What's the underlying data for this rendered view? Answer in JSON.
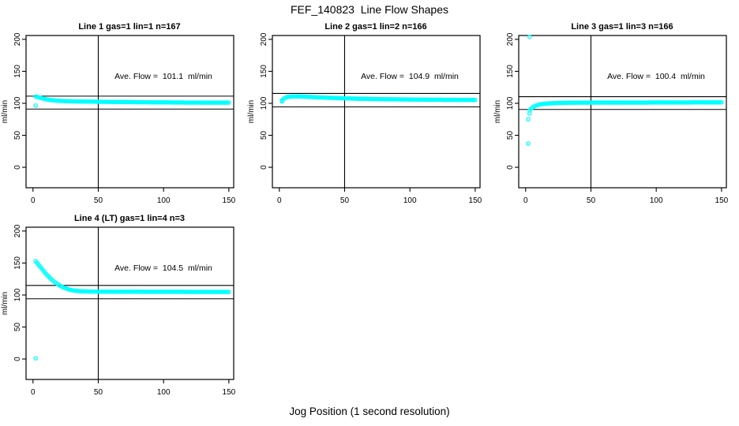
{
  "page": {
    "title": "FEF_140823  Line Flow Shapes",
    "x_axis_label": "Jog Position (1 second resolution)"
  },
  "style": {
    "point_color": "#00ffff",
    "axis_color": "#000000",
    "background": "#ffffff"
  },
  "axes": {
    "ylabel": "ml/min",
    "x_ticks": [
      0,
      50,
      100,
      150
    ],
    "y_ticks": [
      0,
      50,
      100,
      150,
      200
    ],
    "x_range": [
      -5.3,
      153.7
    ],
    "y_range": [
      -32,
      206
    ],
    "vline_x": 50
  },
  "chart_data": [
    {
      "type": "scatter",
      "title": "Line 1 gas=1 lin=1 n=167",
      "annotation": "Ave. Flow =  101.1  ml/min",
      "ave_flow_ml_min": 101.1,
      "n_points": 167,
      "hlines": [
        111.2,
        91.0
      ],
      "grid": {
        "row": 0,
        "col": 0
      },
      "points": [
        [
          2,
          110.5
        ],
        [
          3,
          110.2
        ],
        [
          4,
          109.6
        ],
        [
          5,
          109.0
        ],
        [
          6,
          108.4
        ],
        [
          7,
          107.8
        ],
        [
          8,
          107.2
        ],
        [
          10,
          106.3
        ],
        [
          12,
          105.6
        ],
        [
          14,
          105.0
        ],
        [
          16,
          104.6
        ],
        [
          18,
          104.2
        ],
        [
          20,
          103.9
        ],
        [
          23,
          103.6
        ],
        [
          26,
          103.3
        ],
        [
          30,
          103.1
        ],
        [
          35,
          102.9
        ],
        [
          40,
          102.7
        ],
        [
          45,
          102.6
        ],
        [
          50,
          102.4
        ],
        [
          55,
          102.3
        ],
        [
          60,
          102.2
        ],
        [
          65,
          102.1
        ],
        [
          70,
          102.0
        ],
        [
          80,
          101.8
        ],
        [
          90,
          101.6
        ],
        [
          100,
          101.5
        ],
        [
          110,
          101.3
        ],
        [
          120,
          101.2
        ],
        [
          130,
          101.1
        ],
        [
          140,
          101.0
        ],
        [
          150,
          101.0
        ]
      ],
      "outliers": [
        [
          2,
          96.5
        ]
      ]
    },
    {
      "type": "scatter",
      "title": "Line 2 gas=1 lin=2 n=166",
      "annotation": "Ave. Flow =  104.9  ml/min",
      "ave_flow_ml_min": 104.9,
      "n_points": 166,
      "hlines": [
        115.4,
        94.4
      ],
      "grid": {
        "row": 0,
        "col": 1
      },
      "points": [
        [
          2,
          104.5
        ],
        [
          3,
          106.5
        ],
        [
          4,
          108.0
        ],
        [
          5,
          109.0
        ],
        [
          6,
          109.8
        ],
        [
          8,
          110.4
        ],
        [
          10,
          110.7
        ],
        [
          12,
          110.8
        ],
        [
          14,
          110.8
        ],
        [
          16,
          110.7
        ],
        [
          18,
          110.5
        ],
        [
          20,
          110.3
        ],
        [
          23,
          110.0
        ],
        [
          26,
          109.7
        ],
        [
          30,
          109.3
        ],
        [
          35,
          108.9
        ],
        [
          40,
          108.5
        ],
        [
          45,
          108.1
        ],
        [
          50,
          107.8
        ],
        [
          55,
          107.5
        ],
        [
          60,
          107.2
        ],
        [
          65,
          107.0
        ],
        [
          70,
          106.8
        ],
        [
          80,
          106.5
        ],
        [
          90,
          106.2
        ],
        [
          100,
          106.0
        ],
        [
          110,
          105.8
        ],
        [
          120,
          105.6
        ],
        [
          130,
          105.5
        ],
        [
          140,
          105.4
        ],
        [
          150,
          105.3
        ]
      ],
      "outliers": [
        [
          2,
          103.0
        ]
      ]
    },
    {
      "type": "scatter",
      "title": "Line 3 gas=1 lin=3 n=166",
      "annotation": "Ave. Flow =  100.4  ml/min",
      "ave_flow_ml_min": 100.4,
      "n_points": 166,
      "hlines": [
        110.4,
        90.4
      ],
      "grid": {
        "row": 0,
        "col": 2
      },
      "points": [
        [
          3,
          89.0
        ],
        [
          4,
          91.5
        ],
        [
          5,
          93.0
        ],
        [
          6,
          94.5
        ],
        [
          7,
          95.5
        ],
        [
          8,
          96.5
        ],
        [
          10,
          97.8
        ],
        [
          12,
          98.6
        ],
        [
          14,
          99.2
        ],
        [
          16,
          99.6
        ],
        [
          18,
          99.9
        ],
        [
          20,
          100.1
        ],
        [
          23,
          100.4
        ],
        [
          26,
          100.6
        ],
        [
          30,
          100.8
        ],
        [
          35,
          100.9
        ],
        [
          40,
          101.0
        ],
        [
          50,
          101.1
        ],
        [
          60,
          101.2
        ],
        [
          70,
          101.2
        ],
        [
          80,
          101.2
        ],
        [
          90,
          101.2
        ],
        [
          100,
          101.3
        ],
        [
          110,
          101.3
        ],
        [
          120,
          101.3
        ],
        [
          130,
          101.4
        ],
        [
          140,
          101.4
        ],
        [
          150,
          101.5
        ]
      ],
      "outliers": [
        [
          2,
          37.0
        ],
        [
          2,
          75.0
        ],
        [
          3,
          84.0
        ],
        [
          3,
          204.0
        ]
      ]
    },
    {
      "type": "scatter",
      "title": "Line 4 (LT) gas=1 lin=4 n=3",
      "annotation": "Ave. Flow =  104.5  ml/min",
      "ave_flow_ml_min": 104.5,
      "n_points": 3,
      "hlines": [
        115.0,
        94.1
      ],
      "grid": {
        "row": 1,
        "col": 0
      },
      "points": [
        [
          2,
          153.0
        ],
        [
          3,
          150.5
        ],
        [
          4,
          148.0
        ],
        [
          5,
          145.5
        ],
        [
          6,
          143.0
        ],
        [
          7,
          140.5
        ],
        [
          8,
          138.0
        ],
        [
          9,
          135.5
        ],
        [
          10,
          133.0
        ],
        [
          11,
          130.8
        ],
        [
          12,
          128.7
        ],
        [
          13,
          126.7
        ],
        [
          14,
          124.8
        ],
        [
          15,
          123.0
        ],
        [
          16,
          121.3
        ],
        [
          17,
          119.7
        ],
        [
          18,
          118.2
        ],
        [
          19,
          116.8
        ],
        [
          20,
          115.5
        ],
        [
          21,
          114.3
        ],
        [
          22,
          113.2
        ],
        [
          23,
          112.2
        ],
        [
          24,
          111.3
        ],
        [
          25,
          110.5
        ],
        [
          26,
          109.8
        ],
        [
          27,
          109.1
        ],
        [
          28,
          108.5
        ],
        [
          29,
          108.0
        ],
        [
          30,
          107.5
        ],
        [
          32,
          106.8
        ],
        [
          34,
          106.3
        ],
        [
          36,
          106.0
        ],
        [
          38,
          105.8
        ],
        [
          40,
          105.6
        ],
        [
          45,
          105.4
        ],
        [
          50,
          105.3
        ],
        [
          55,
          105.2
        ],
        [
          60,
          105.2
        ],
        [
          70,
          105.1
        ],
        [
          80,
          105.1
        ],
        [
          90,
          105.0
        ],
        [
          100,
          105.0
        ],
        [
          110,
          105.0
        ],
        [
          120,
          104.9
        ],
        [
          130,
          104.9
        ],
        [
          140,
          104.9
        ],
        [
          150,
          104.8
        ]
      ],
      "outliers": [
        [
          2,
          1.0
        ]
      ]
    }
  ]
}
